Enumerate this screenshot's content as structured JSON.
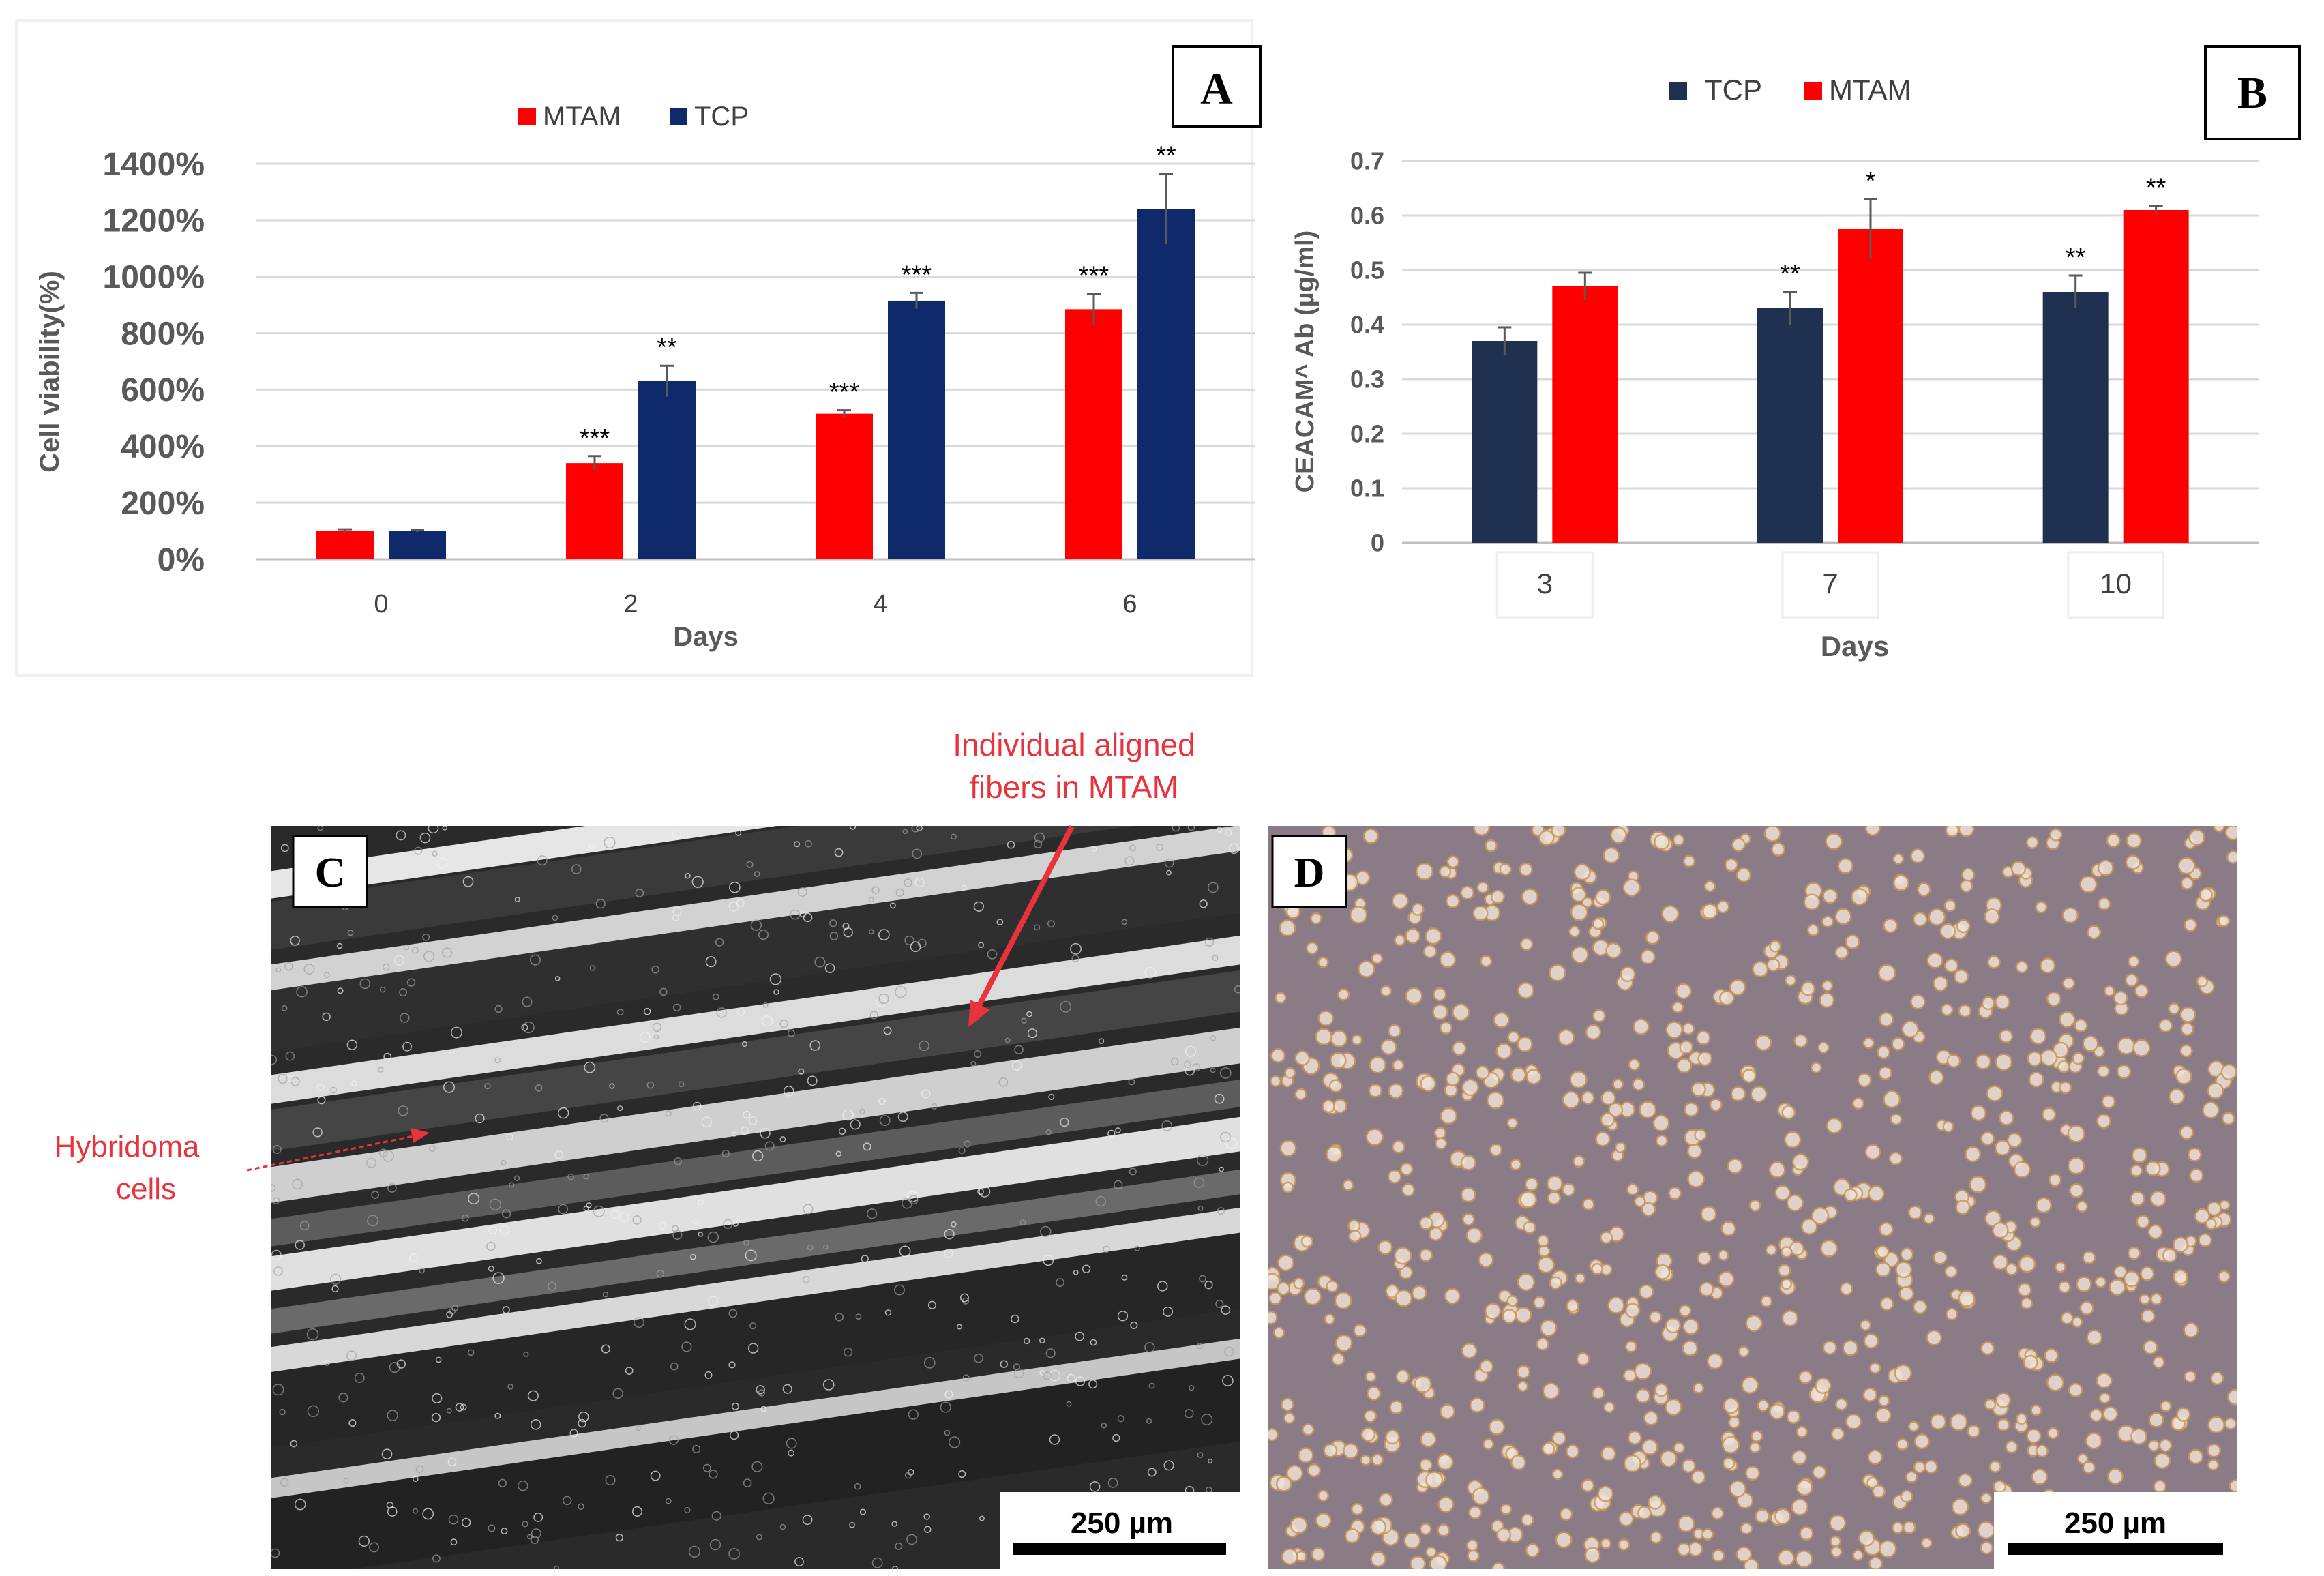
{
  "colors": {
    "MTAM": "#ff0000",
    "TCP_A": "#0e2a6b",
    "TCP_B": "#1f3050",
    "annotation": "#e8323c",
    "gridline": "#d9d9d9",
    "micrograph_C": "#2a2a2a",
    "micrograph_D": "#8a7b87"
  },
  "chart_data": [
    {
      "panel": "A",
      "type": "bar",
      "categories": [
        "0",
        "2",
        "4",
        "6"
      ],
      "series": [
        {
          "name": "MTAM",
          "values": [
            100,
            340,
            515,
            885
          ],
          "errors": [
            6,
            25,
            12,
            55
          ]
        },
        {
          "name": "TCP",
          "values": [
            100,
            630,
            915,
            1240
          ],
          "errors": [
            4,
            55,
            28,
            125
          ]
        }
      ],
      "significance": {
        "MTAM": [
          "",
          "***",
          "***",
          "***"
        ],
        "TCP": [
          "",
          "**",
          "***",
          "**"
        ]
      },
      "xlabel": "Days",
      "ylabel": "Cell viability(%)",
      "ylim": [
        0,
        1400
      ],
      "yticks": [
        "0%",
        "200%",
        "400%",
        "600%",
        "800%",
        "1000%",
        "1200%",
        "1400%"
      ],
      "grid": true,
      "legend_position": "top"
    },
    {
      "panel": "B",
      "type": "bar",
      "categories": [
        "3",
        "7",
        "10"
      ],
      "series": [
        {
          "name": "TCP",
          "values": [
            0.37,
            0.43,
            0.46
          ],
          "errors": [
            0.025,
            0.03,
            0.03
          ]
        },
        {
          "name": "MTAM",
          "values": [
            0.47,
            0.575,
            0.61
          ],
          "errors": [
            0.025,
            0.055,
            0.008
          ]
        }
      ],
      "significance": {
        "TCP": [
          "",
          "**",
          "**"
        ],
        "MTAM": [
          "",
          "*",
          "**"
        ]
      },
      "xlabel": "Days",
      "ylabel": "CEACAM^ Ab (µg/ml)",
      "ylim": [
        0,
        0.7
      ],
      "yticks": [
        "0",
        "0.1",
        "0.2",
        "0.3",
        "0.4",
        "0.5",
        "0.6",
        "0.7"
      ],
      "grid": true,
      "legend_position": "top"
    }
  ],
  "panels": {
    "A": {
      "label": "A"
    },
    "B": {
      "label": "B"
    },
    "C": {
      "label": "C",
      "scale_bar": "250 µm",
      "annotation_fibers": [
        "Individual aligned",
        "fibers in MTAM"
      ],
      "annotation_cells": [
        "Hybridoma",
        "cells"
      ]
    },
    "D": {
      "label": "D",
      "scale_bar": "250 µm"
    }
  }
}
